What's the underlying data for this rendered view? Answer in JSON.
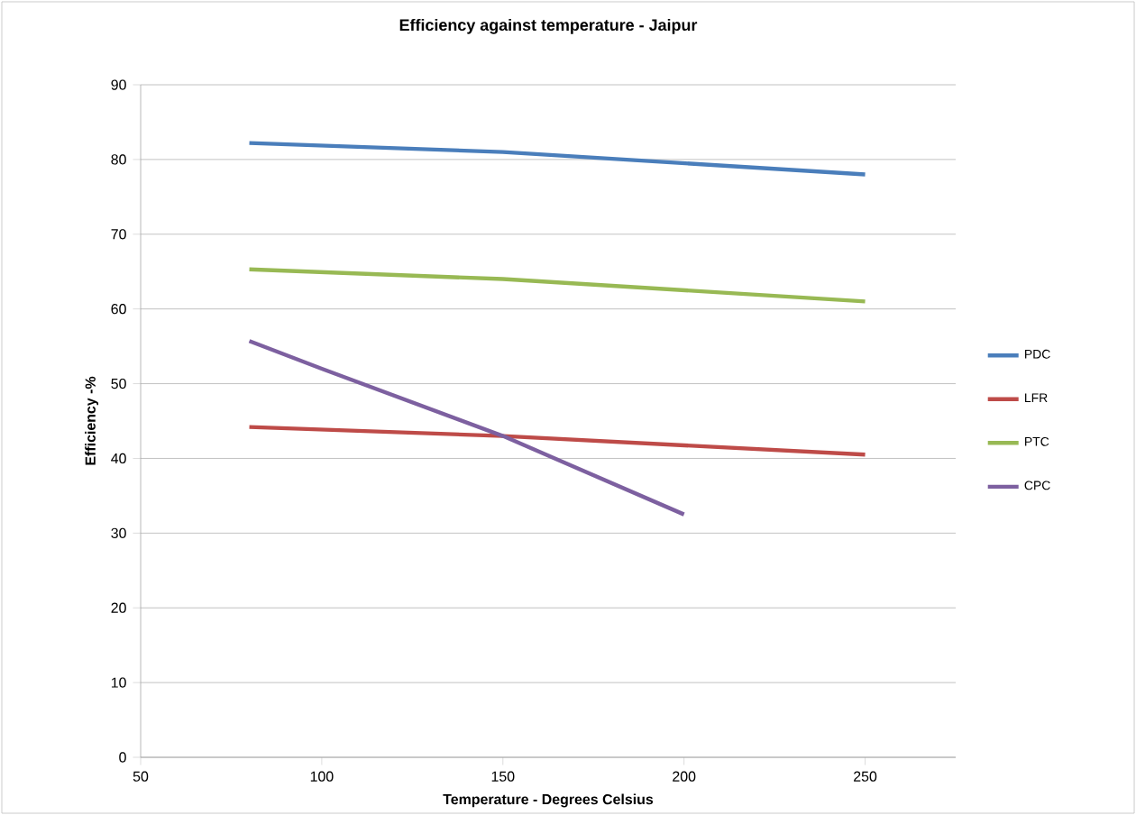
{
  "chart_data": {
    "type": "line",
    "title": "Efficiency against temperature - Jaipur",
    "xlabel": "Temperature  - Degrees Celsius",
    "ylabel": "Efficiency -%",
    "xlim": [
      50,
      275
    ],
    "xticks": [
      50,
      100,
      150,
      200,
      250
    ],
    "ylim": [
      0,
      90
    ],
    "yticks": [
      0,
      10,
      20,
      30,
      40,
      50,
      60,
      70,
      80,
      90
    ],
    "grid": "y",
    "legend": "right",
    "marker": "none",
    "line_style": "solid",
    "series": [
      {
        "name": "PDC",
        "color": "#4a7ebb",
        "x": [
          80,
          150,
          250
        ],
        "values": [
          82.2,
          81,
          78
        ]
      },
      {
        "name": "LFR",
        "color": "#be4b48",
        "x": [
          80,
          150,
          250
        ],
        "values": [
          44.2,
          43,
          40.5
        ]
      },
      {
        "name": "PTC",
        "color": "#98b954",
        "x": [
          80,
          150,
          250
        ],
        "values": [
          65.3,
          64,
          61
        ]
      },
      {
        "name": "CPC",
        "color": "#7d60a0",
        "x": [
          80,
          100,
          150,
          200
        ],
        "values": [
          55.7,
          52,
          43,
          32.5
        ]
      }
    ]
  }
}
